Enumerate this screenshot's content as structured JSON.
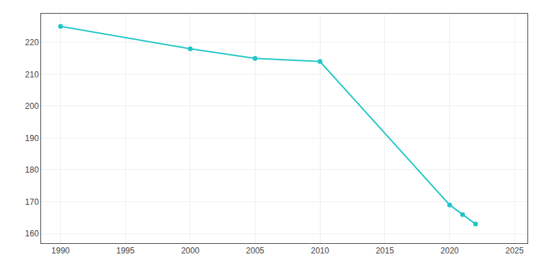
{
  "chart_data": {
    "type": "line",
    "x": [
      1990,
      2000,
      2005,
      2010,
      2020,
      2021,
      2022
    ],
    "values": [
      225,
      218,
      215,
      214,
      169,
      166,
      163
    ],
    "color": "#20C5C8",
    "marker": "circle",
    "xlim": [
      1988.5,
      2026
    ],
    "ylim": [
      157,
      229
    ],
    "xticks": [
      1990,
      1995,
      2000,
      2005,
      2010,
      2015,
      2020,
      2025
    ],
    "yticks": [
      160,
      170,
      180,
      190,
      200,
      210,
      220
    ],
    "grid": true
  }
}
